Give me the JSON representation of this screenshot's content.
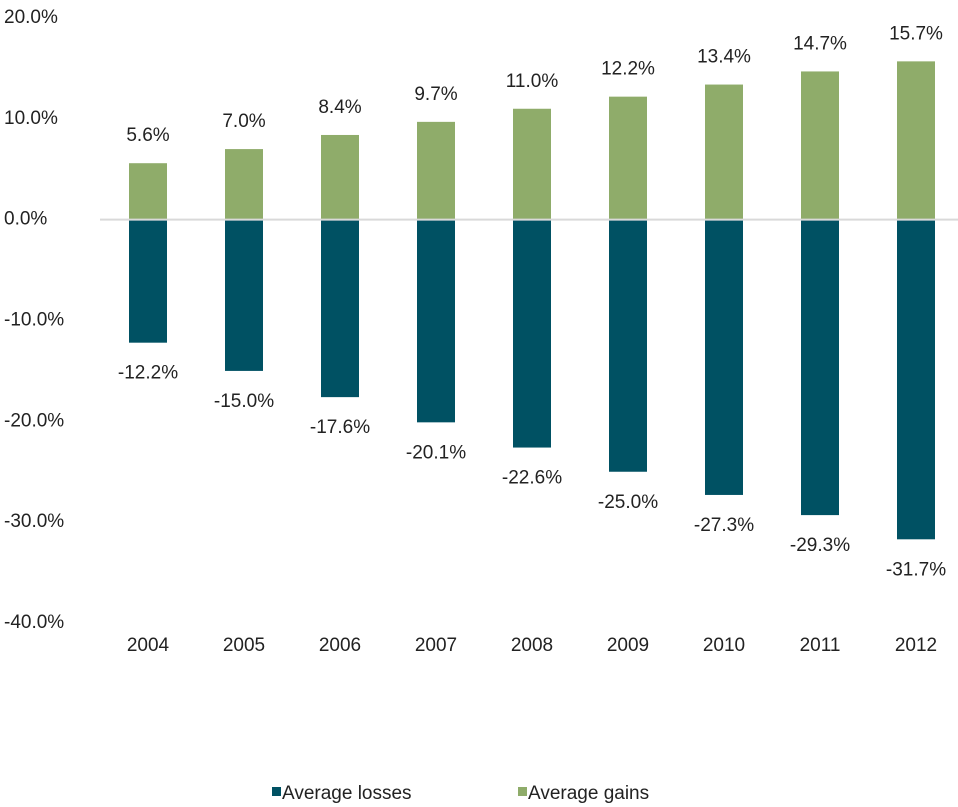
{
  "chart_data": {
    "type": "bar",
    "categories": [
      "2004",
      "2005",
      "2006",
      "2007",
      "2008",
      "2009",
      "2010",
      "2011",
      "2012"
    ],
    "series": [
      {
        "name": "Average losses",
        "color": "#005163",
        "values": [
          -12.2,
          -15.0,
          -17.6,
          -20.1,
          -22.6,
          -25.0,
          -27.3,
          -29.3,
          -31.7
        ],
        "value_labels": [
          "-12.2%",
          "-15.0%",
          "-17.6%",
          "-20.1%",
          "-22.6%",
          "-25.0%",
          "-27.3%",
          "-29.3%",
          "-31.7%"
        ]
      },
      {
        "name": "Average gains",
        "color": "#8fac6a",
        "values": [
          5.6,
          7.0,
          8.4,
          9.7,
          11.0,
          12.2,
          13.4,
          14.7,
          15.7
        ],
        "value_labels": [
          "5.6%",
          "7.0%",
          "8.4%",
          "9.7%",
          "11.0%",
          "12.2%",
          "13.4%",
          "14.7%",
          "15.7%"
        ]
      }
    ],
    "ylim": [
      -40,
      20
    ],
    "yticks": [
      {
        "value": 20,
        "label": "20.0%"
      },
      {
        "value": 10,
        "label": "10.0%"
      },
      {
        "value": 0,
        "label": "0.0%"
      },
      {
        "value": -10,
        "label": "-10.0%"
      },
      {
        "value": -20,
        "label": "-20.0%"
      },
      {
        "value": -30,
        "label": "-30.0%"
      },
      {
        "value": -40,
        "label": "-40.0%"
      }
    ],
    "legend": "bottom"
  }
}
